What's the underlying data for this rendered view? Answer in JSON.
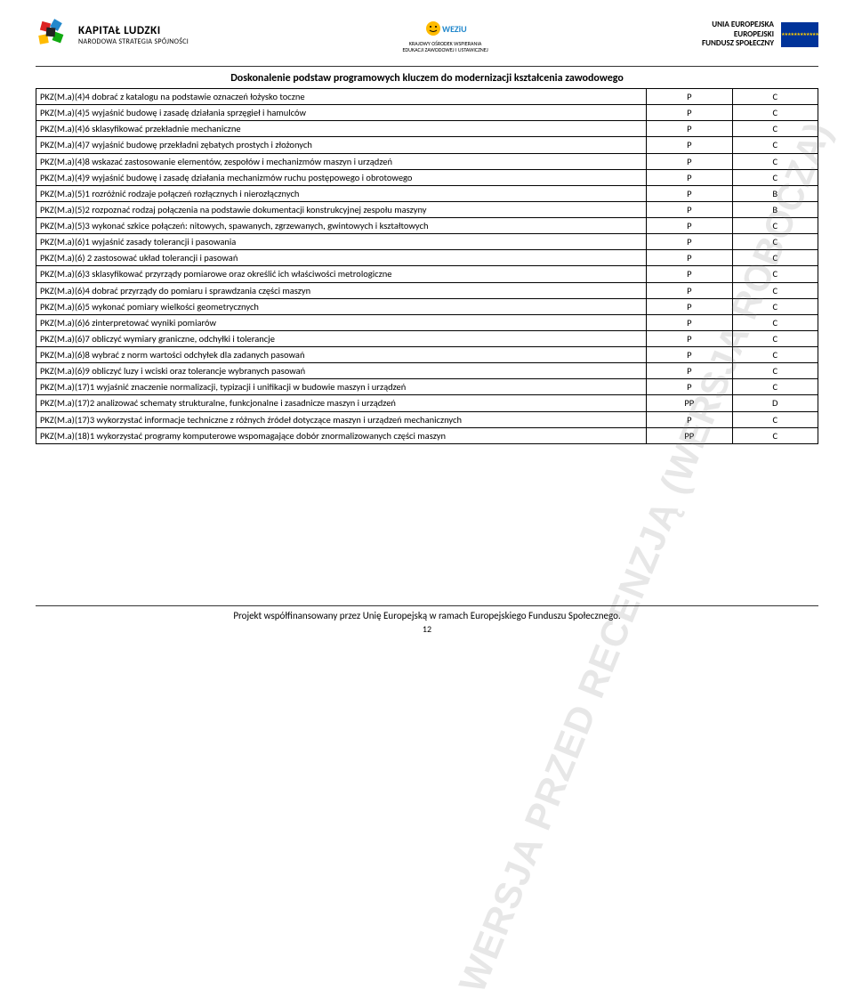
{
  "header": {
    "left": {
      "title": "KAPITAŁ LUDZKI",
      "subtitle": "NARODOWA STRATEGIA SPÓJNOŚCI"
    },
    "center": {
      "name": "KOWEZiU",
      "line1": "KRAJOWY OŚRODEK WSPIERANIA",
      "line2": "EDUKACJI ZAWODOWEJ I USTAWICZNEJ"
    },
    "right": {
      "l1": "UNIA EUROPEJSKA",
      "l2": "EUROPEJSKI",
      "l3": "FUNDUSZ SPOŁECZNY"
    }
  },
  "title": "Doskonalenie podstaw programowych kluczem do modernizacji kształcenia zawodowego",
  "watermark": "WERSJA PRZED RECENZJĄ (WERSJA ROBOCZA)",
  "rows": [
    {
      "c1": "PKZ(M.a)(4)4 dobrać z katalogu na podstawie oznaczeń łożysko toczne",
      "c2": "P",
      "c3": "C"
    },
    {
      "c1": "PKZ(M.a)(4)5 wyjaśnić budowę i zasadę działania sprzęgieł i hamulców",
      "c2": "P",
      "c3": "C"
    },
    {
      "c1": "PKZ(M.a)(4)6 sklasyfikować przekładnie mechaniczne",
      "c2": "P",
      "c3": "C"
    },
    {
      "c1": "PKZ(M.a)(4)7 wyjaśnić budowę przekładni zębatych prostych i złożonych",
      "c2": "P",
      "c3": "C"
    },
    {
      "c1": "PKZ(M.a)(4)8 wskazać zastosowanie elementów, zespołów i mechanizmów maszyn i urządzeń",
      "c2": "P",
      "c3": "C"
    },
    {
      "c1": "PKZ(M.a)(4)9 wyjaśnić budowę i zasadę działania mechanizmów ruchu postępowego i obrotowego",
      "c2": "P",
      "c3": "C"
    },
    {
      "c1": "PKZ(M.a)(5)1 rozróżnić rodzaje połączeń rozłącznych i nierozłącznych",
      "c2": "P",
      "c3": "B"
    },
    {
      "c1": "PKZ(M.a)(5)2 rozpoznać rodzaj połączenia na podstawie dokumentacji konstrukcyjnej zespołu maszyny",
      "c2": "P",
      "c3": "B"
    },
    {
      "c1": "PKZ(M.a)(5)3 wykonać szkice połączeń: nitowych, spawanych, zgrzewanych, gwintowych i kształtowych",
      "c2": "P",
      "c3": "C"
    },
    {
      "c1": "PKZ(M.a)(6)1 wyjaśnić zasady tolerancji i pasowania",
      "c2": "P",
      "c3": "C"
    },
    {
      "c1": "PKZ(M.a)(6) 2 zastosować układ tolerancji i pasowań",
      "c2": "P",
      "c3": "C"
    },
    {
      "c1": "PKZ(M.a)(6)3 sklasyfikować przyrządy pomiarowe oraz określić ich właściwości metrologiczne",
      "c2": "P",
      "c3": "C"
    },
    {
      "c1": "PKZ(M.a)(6)4 dobrać przyrządy do pomiaru i sprawdzania części maszyn",
      "c2": "P",
      "c3": "C"
    },
    {
      "c1": "PKZ(M.a)(6)5 wykonać pomiary wielkości geometrycznych",
      "c2": "P",
      "c3": "C"
    },
    {
      "c1": "PKZ(M.a)(6)6 zinterpretować wyniki pomiarów",
      "c2": "P",
      "c3": "C"
    },
    {
      "c1": "PKZ(M.a)(6)7 obliczyć wymiary graniczne, odchyłki i tolerancje",
      "c2": "P",
      "c3": "C"
    },
    {
      "c1": "PKZ(M.a)(6)8 wybrać z norm wartości odchyłek dla zadanych pasowań",
      "c2": "P",
      "c3": "C"
    },
    {
      "c1": "PKZ(M.a)(6)9 obliczyć luzy i wciski oraz tolerancje wybranych pasowań",
      "c2": "P",
      "c3": "C"
    },
    {
      "c1": "PKZ(M.a)(17)1 wyjaśnić znaczenie normalizacji, typizacji i unifikacji w budowie maszyn i urządzeń",
      "c2": "P",
      "c3": "C"
    },
    {
      "c1": "PKZ(M.a)(17)2 analizować schematy strukturalne, funkcjonalne i zasadnicze maszyn i urządzeń",
      "c2": "PP",
      "c3": "D"
    },
    {
      "c1": "PKZ(M.a)(17)3 wykorzystać informacje techniczne z różnych źródeł dotyczące maszyn i urządzeń mechanicznych",
      "c2": "P",
      "c3": "C"
    },
    {
      "c1": "PKZ(M.a)(18)1 wykorzystać programy komputerowe wspomagające dobór znormalizowanych części maszyn",
      "c2": "PP",
      "c3": "C"
    }
  ],
  "footer": {
    "text": "Projekt współfinansowany przez Unię Europejską w ramach Europejskiego Funduszu Społecznego.",
    "page": "12"
  },
  "colors": {
    "border": "#000000",
    "watermark": "rgba(120,120,120,0.18)",
    "eu_blue": "#003399",
    "eu_gold": "#ffcc00"
  }
}
